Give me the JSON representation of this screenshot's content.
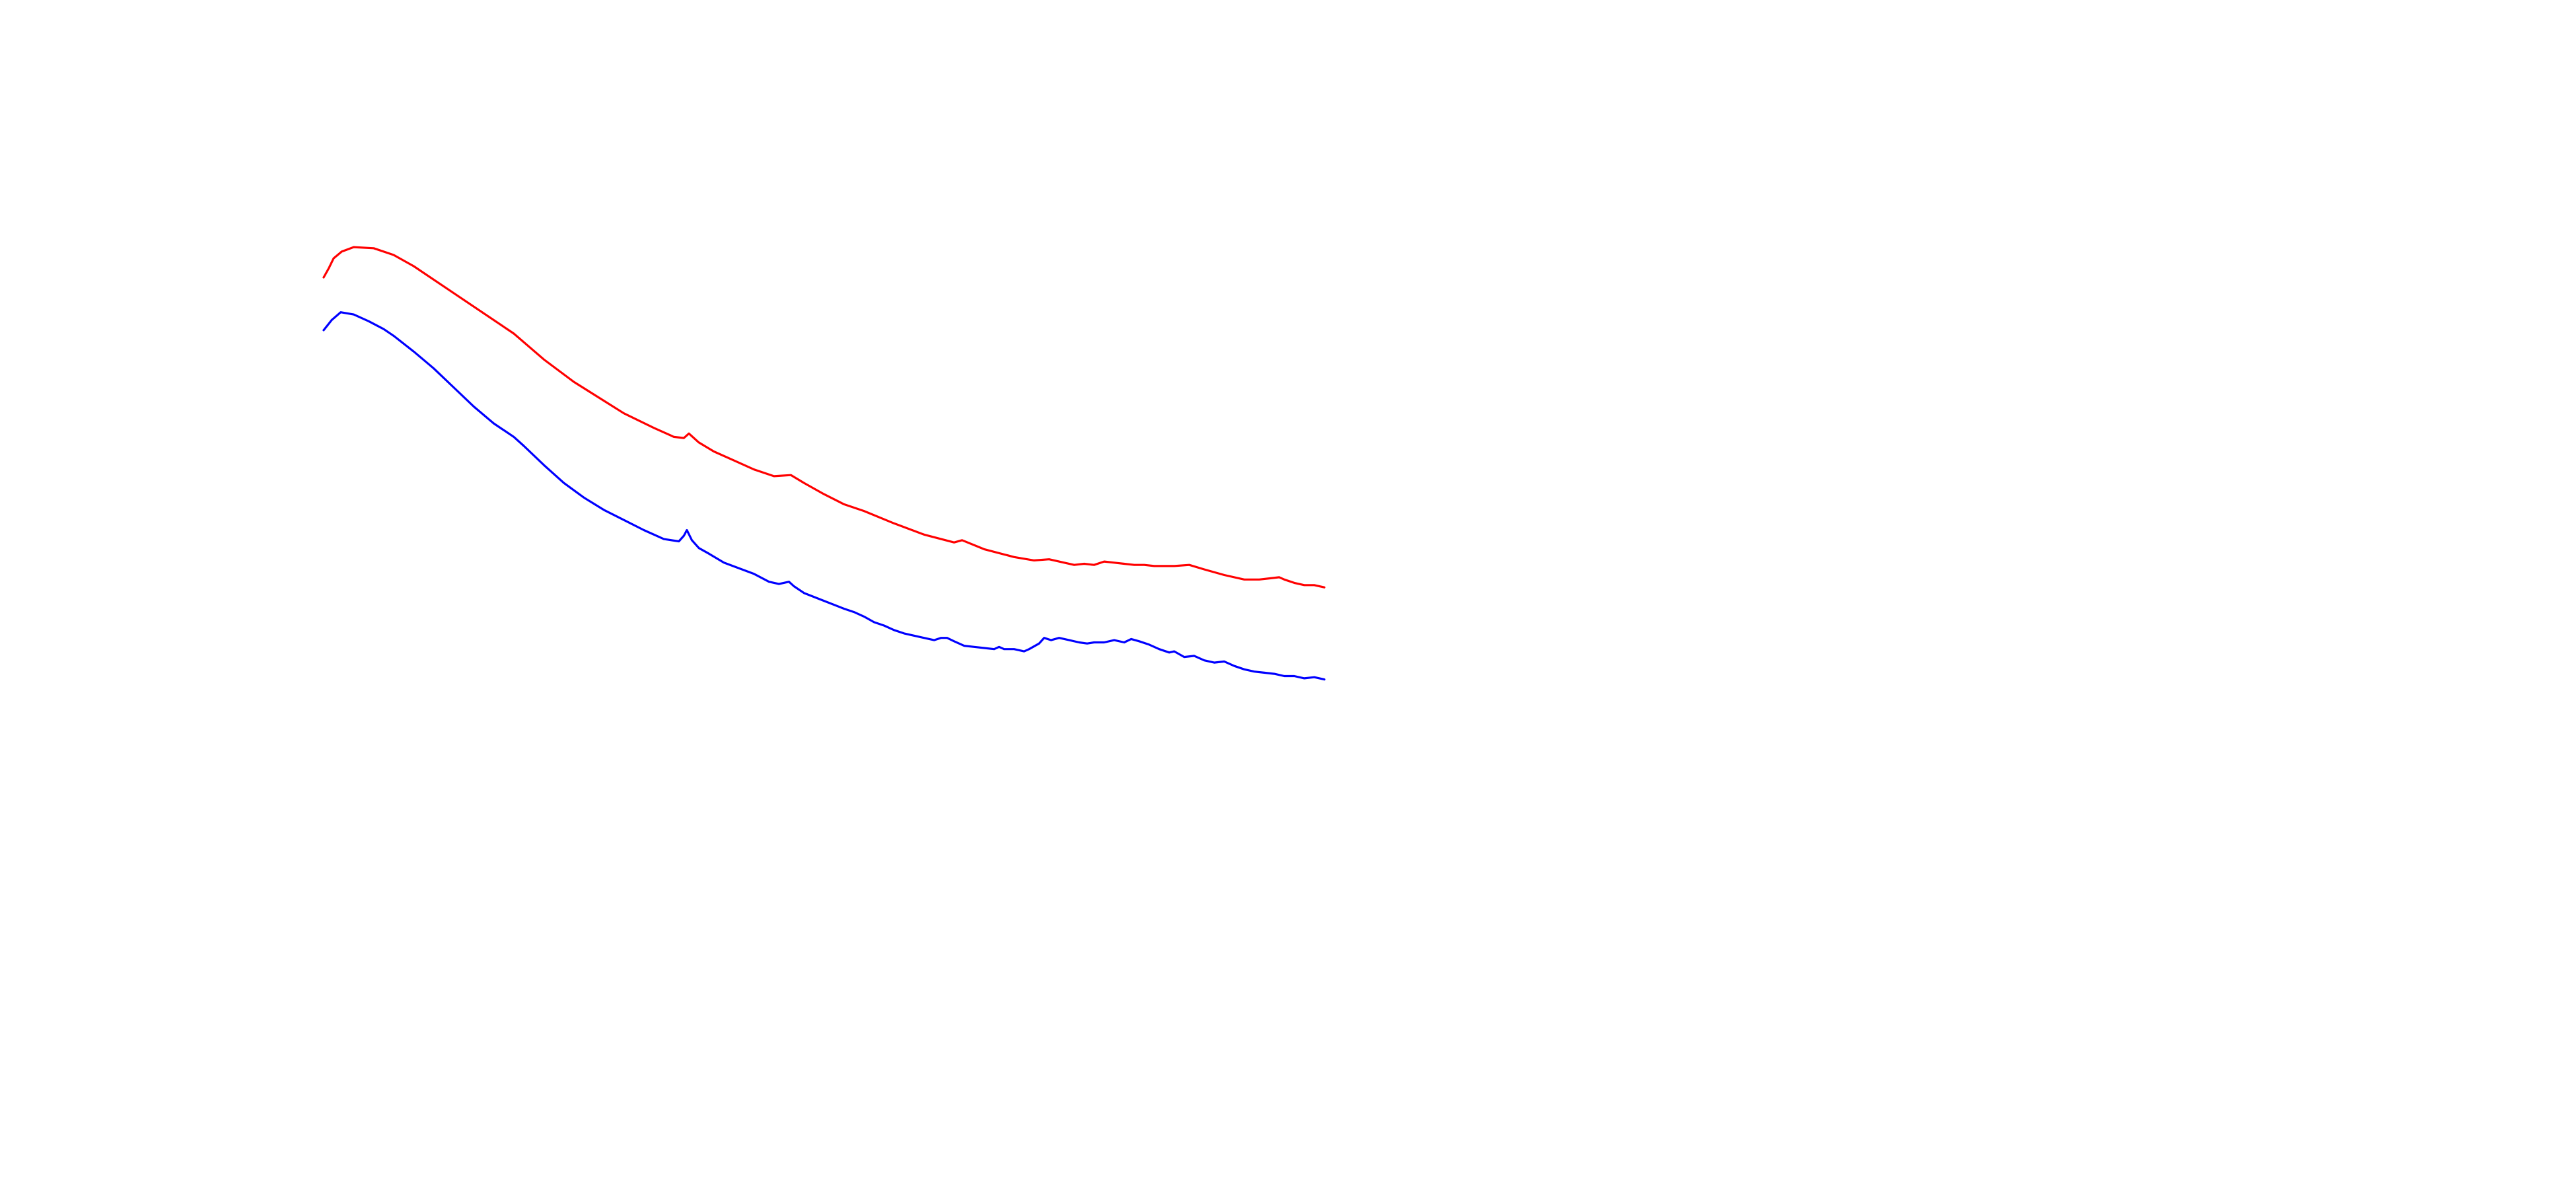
{
  "chart_data": {
    "type": "line",
    "title": "",
    "xlabel": "",
    "ylabel": "",
    "grid": false,
    "legend": "none",
    "xlim": [
      0,
      100
    ],
    "ylim": [
      0,
      100
    ],
    "series": [
      {
        "color": "#ff0000",
        "points": [
          [
            0,
            80.0
          ],
          [
            0.5,
            80.8
          ],
          [
            1,
            81.7
          ],
          [
            1.8,
            82.3
          ],
          [
            3,
            82.7
          ],
          [
            5,
            82.6
          ],
          [
            7,
            82.0
          ],
          [
            9,
            81.0
          ],
          [
            12,
            79.2
          ],
          [
            15,
            77.4
          ],
          [
            19,
            75.0
          ],
          [
            22,
            72.7
          ],
          [
            25,
            70.7
          ],
          [
            27.5,
            69.3
          ],
          [
            30,
            67.9
          ],
          [
            33,
            66.6
          ],
          [
            35,
            65.8
          ],
          [
            36,
            65.7
          ],
          [
            36.5,
            66.1
          ],
          [
            37.5,
            65.3
          ],
          [
            39,
            64.5
          ],
          [
            41,
            63.7
          ],
          [
            43,
            62.9
          ],
          [
            45,
            62.3
          ],
          [
            46.7,
            62.4
          ],
          [
            48,
            61.7
          ],
          [
            50,
            60.7
          ],
          [
            52,
            59.8
          ],
          [
            54,
            59.2
          ],
          [
            57,
            58.1
          ],
          [
            60,
            57.1
          ],
          [
            63,
            56.4
          ],
          [
            63.8,
            56.6
          ],
          [
            66,
            55.8
          ],
          [
            69,
            55.1
          ],
          [
            71,
            54.8
          ],
          [
            72.5,
            54.9
          ],
          [
            74,
            54.6
          ],
          [
            75,
            54.4
          ],
          [
            76,
            54.5
          ],
          [
            77,
            54.4
          ],
          [
            78,
            54.7
          ],
          [
            79,
            54.6
          ],
          [
            80,
            54.5
          ],
          [
            81,
            54.4
          ],
          [
            82,
            54.4
          ],
          [
            83,
            54.3
          ],
          [
            85,
            54.3
          ],
          [
            86.5,
            54.4
          ],
          [
            88,
            54.0
          ],
          [
            90,
            53.5
          ],
          [
            92,
            53.1
          ],
          [
            93.5,
            53.1
          ],
          [
            94.5,
            53.2
          ],
          [
            95.5,
            53.3
          ],
          [
            96,
            53.1
          ],
          [
            97,
            52.8
          ],
          [
            98,
            52.6
          ],
          [
            99,
            52.6
          ],
          [
            100,
            52.4
          ]
        ]
      },
      {
        "color": "#0000ff",
        "points": [
          [
            0,
            75.3
          ],
          [
            0.8,
            76.2
          ],
          [
            1.7,
            76.9
          ],
          [
            3,
            76.7
          ],
          [
            4.5,
            76.1
          ],
          [
            6,
            75.4
          ],
          [
            7,
            74.8
          ],
          [
            9,
            73.4
          ],
          [
            11,
            71.9
          ],
          [
            13,
            70.2
          ],
          [
            15,
            68.5
          ],
          [
            17,
            67.0
          ],
          [
            19,
            65.8
          ],
          [
            20,
            65.0
          ],
          [
            22,
            63.3
          ],
          [
            24,
            61.7
          ],
          [
            26,
            60.4
          ],
          [
            28,
            59.3
          ],
          [
            30,
            58.4
          ],
          [
            32,
            57.5
          ],
          [
            34,
            56.7
          ],
          [
            35.5,
            56.5
          ],
          [
            36,
            57.0
          ],
          [
            36.3,
            57.5
          ],
          [
            36.8,
            56.6
          ],
          [
            37.5,
            55.9
          ],
          [
            38.5,
            55.4
          ],
          [
            40,
            54.6
          ],
          [
            41.5,
            54.1
          ],
          [
            43,
            53.6
          ],
          [
            44.5,
            52.9
          ],
          [
            45.5,
            52.7
          ],
          [
            46.5,
            52.9
          ],
          [
            47,
            52.5
          ],
          [
            48,
            51.9
          ],
          [
            50,
            51.2
          ],
          [
            52,
            50.5
          ],
          [
            53,
            50.2
          ],
          [
            54,
            49.8
          ],
          [
            55,
            49.3
          ],
          [
            56,
            49.0
          ],
          [
            57,
            48.6
          ],
          [
            58,
            48.3
          ],
          [
            59,
            48.1
          ],
          [
            60,
            47.9
          ],
          [
            61,
            47.7
          ],
          [
            61.7,
            47.9
          ],
          [
            62.3,
            47.9
          ],
          [
            63,
            47.6
          ],
          [
            64,
            47.2
          ],
          [
            65,
            47.1
          ],
          [
            66,
            47.0
          ],
          [
            67,
            46.9
          ],
          [
            67.5,
            47.1
          ],
          [
            68,
            46.9
          ],
          [
            69,
            46.9
          ],
          [
            70,
            46.7
          ],
          [
            70.5,
            46.9
          ],
          [
            71.5,
            47.4
          ],
          [
            72,
            47.9
          ],
          [
            72.7,
            47.7
          ],
          [
            73.5,
            47.9
          ],
          [
            74.5,
            47.7
          ],
          [
            75.5,
            47.5
          ],
          [
            76.3,
            47.4
          ],
          [
            77,
            47.5
          ],
          [
            78,
            47.5
          ],
          [
            79,
            47.7
          ],
          [
            80,
            47.5
          ],
          [
            80.7,
            47.8
          ],
          [
            81.5,
            47.6
          ],
          [
            82.5,
            47.3
          ],
          [
            83.5,
            46.9
          ],
          [
            84.5,
            46.6
          ],
          [
            85,
            46.7
          ],
          [
            86,
            46.2
          ],
          [
            87,
            46.3
          ],
          [
            88,
            45.9
          ],
          [
            89,
            45.7
          ],
          [
            90,
            45.8
          ],
          [
            91,
            45.4
          ],
          [
            92,
            45.1
          ],
          [
            93,
            44.9
          ],
          [
            94,
            44.8
          ],
          [
            95,
            44.7
          ],
          [
            96,
            44.5
          ],
          [
            97,
            44.5
          ],
          [
            98,
            44.3
          ],
          [
            99,
            44.4
          ],
          [
            100,
            44.2
          ]
        ]
      }
    ]
  }
}
